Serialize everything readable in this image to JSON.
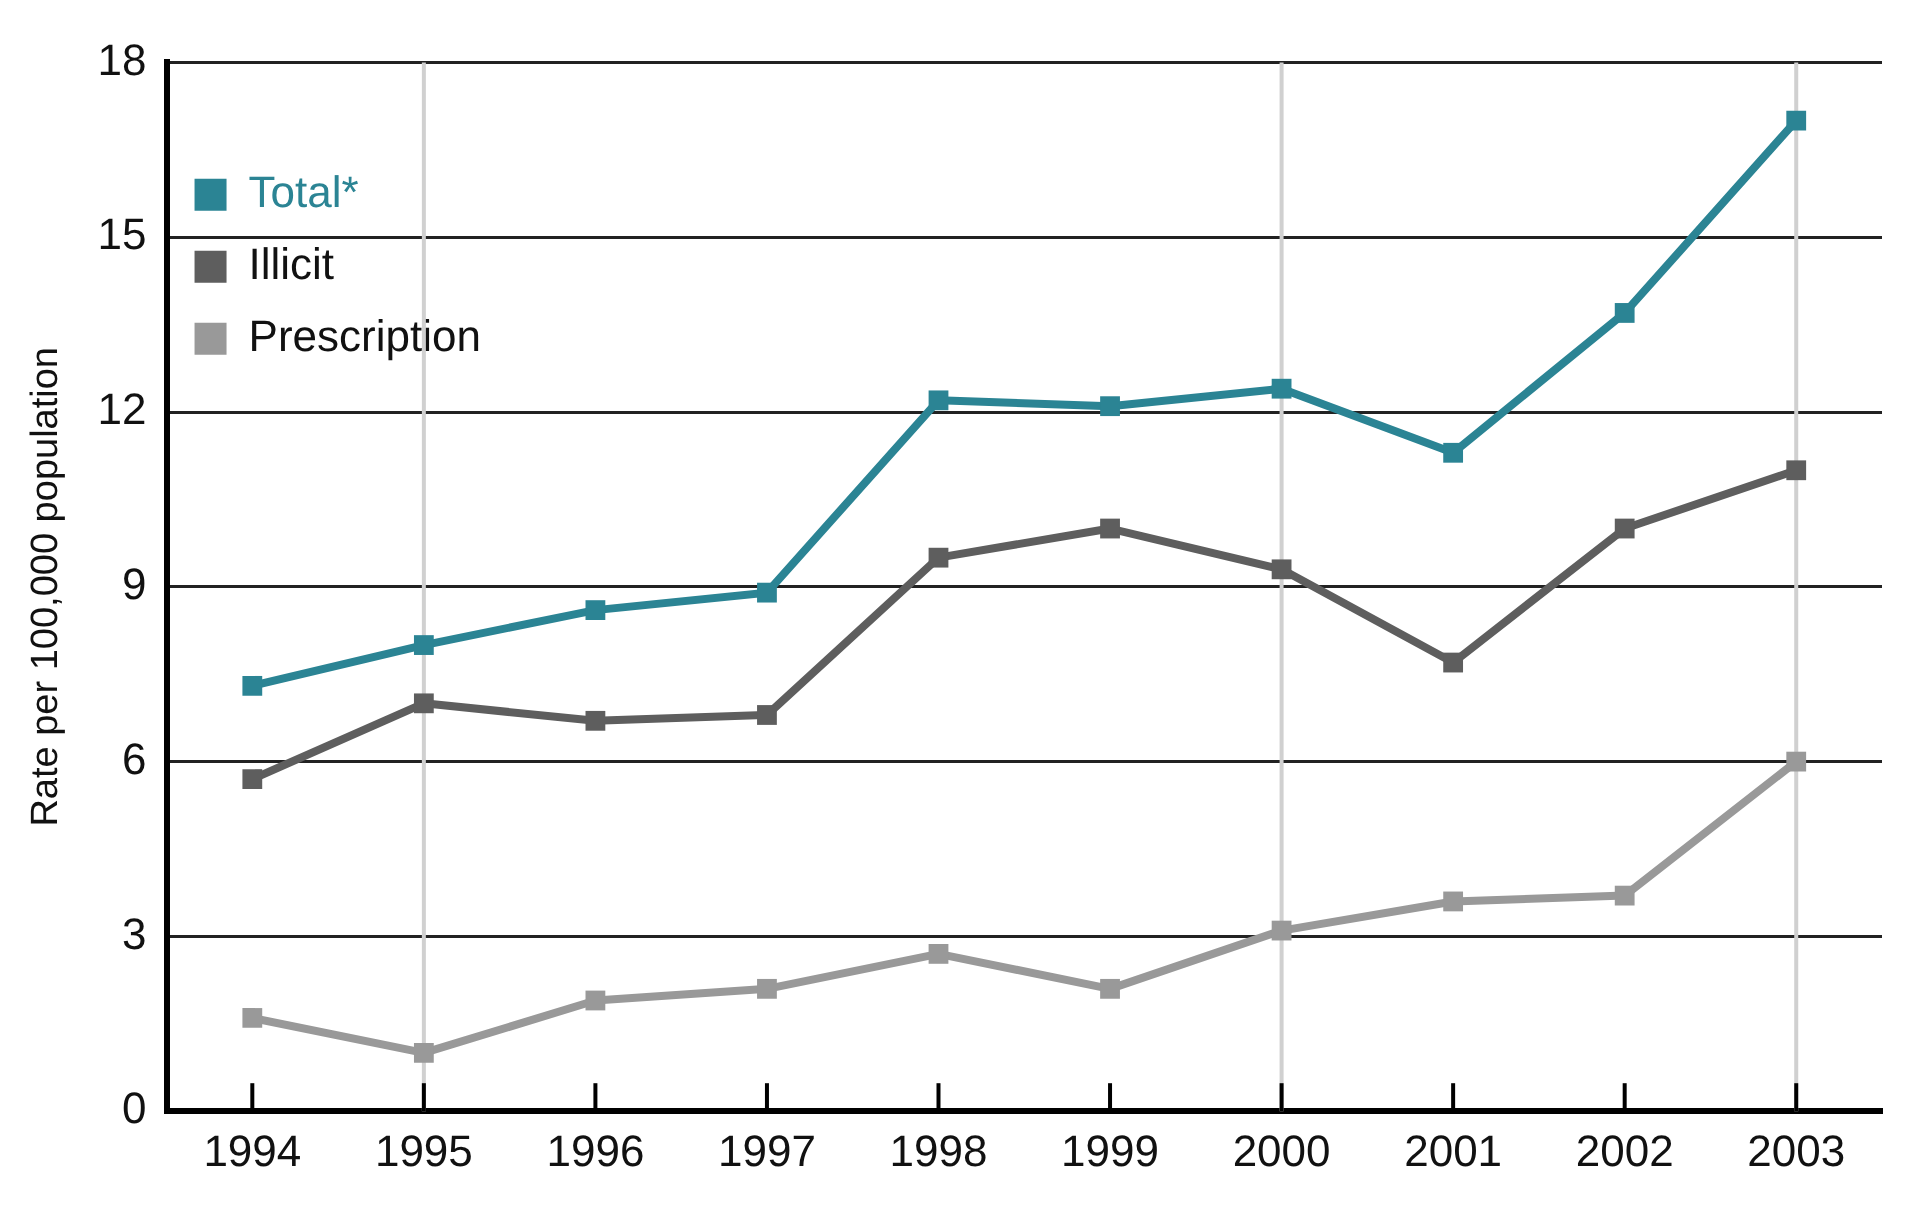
{
  "chart_data": {
    "type": "line",
    "ylabel": "Rate per 100,000 population",
    "categories": [
      "1994",
      "1995",
      "1996",
      "1997",
      "1998",
      "1999",
      "2000",
      "2001",
      "2002",
      "2003"
    ],
    "series": [
      {
        "name": "Total*",
        "color": "#2b8494",
        "values": [
          7.3,
          8.0,
          8.6,
          8.9,
          12.2,
          12.1,
          12.4,
          11.3,
          13.7,
          17.0
        ]
      },
      {
        "name": "Illicit",
        "color": "#5e5e5e",
        "values": [
          5.7,
          7.0,
          6.7,
          6.8,
          9.5,
          10.0,
          9.3,
          7.7,
          10.0,
          11.0
        ]
      },
      {
        "name": "Prescription",
        "color": "#999999",
        "values": [
          1.6,
          1.0,
          1.9,
          2.1,
          2.7,
          2.1,
          3.1,
          3.6,
          3.7,
          6.0
        ]
      }
    ],
    "ylim": [
      0,
      18
    ],
    "yticks": [
      0,
      3,
      6,
      9,
      12,
      15,
      18
    ],
    "grid": "y",
    "legend": "top left",
    "marker": "square",
    "line_style": "solid",
    "ref_lines": [
      {
        "axis": "x",
        "value": "1995",
        "color": "#d0d0d0"
      },
      {
        "axis": "x",
        "value": "2000",
        "color": "#d0d0d0"
      },
      {
        "axis": "x",
        "value": "2003",
        "color": "#d0d0d0"
      }
    ]
  }
}
